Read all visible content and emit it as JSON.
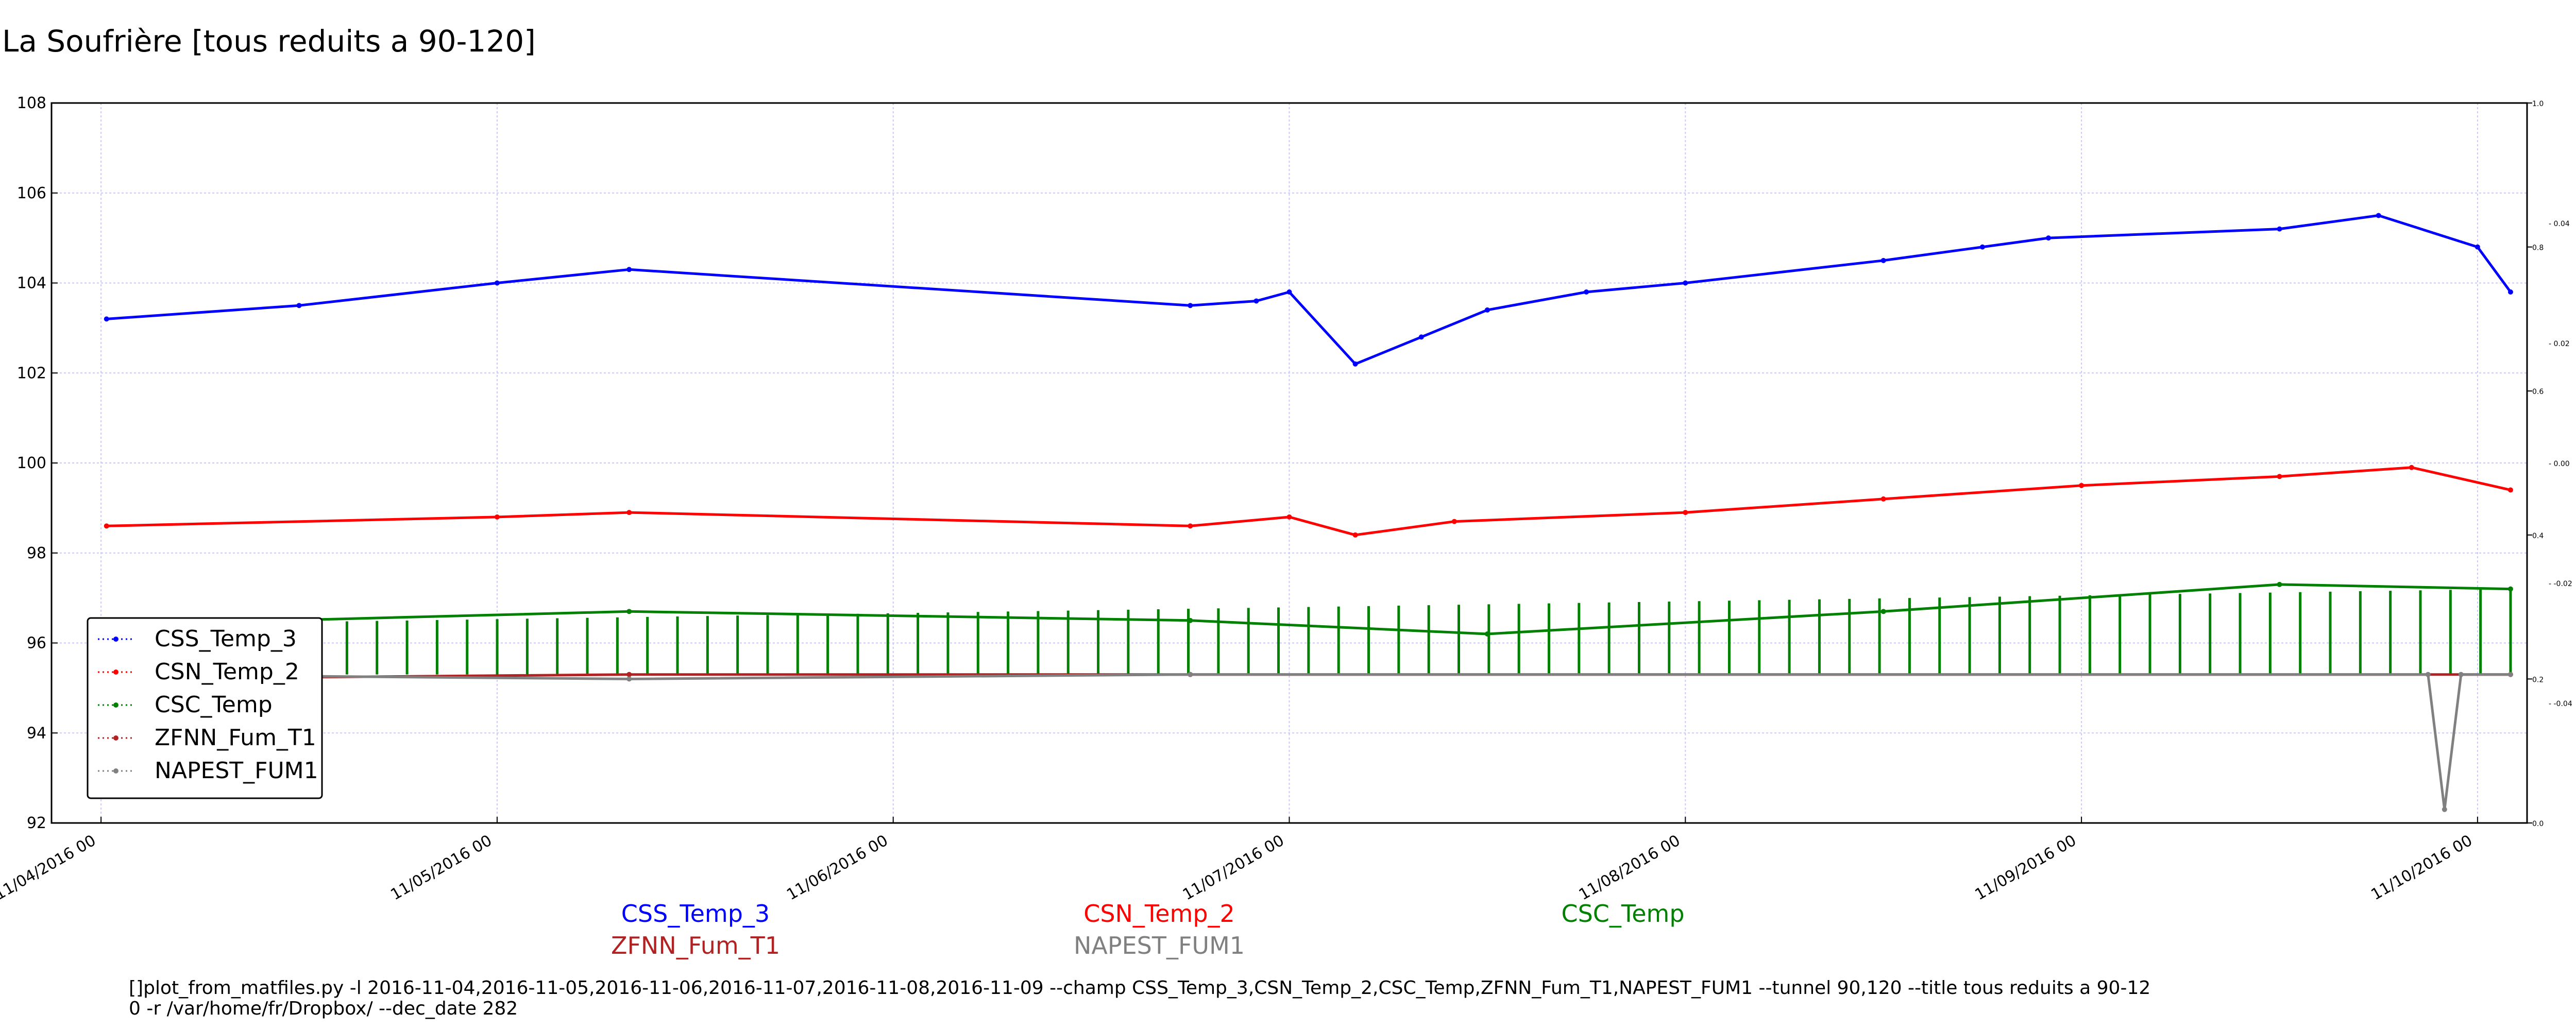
{
  "chart_data": {
    "type": "line",
    "title": "La Soufrière [tous reduits a 90-120]",
    "xlabel": "",
    "ylabel": "",
    "ylim": [
      92,
      108
    ],
    "y_ticks": [
      92,
      94,
      96,
      98,
      100,
      102,
      104,
      106,
      108
    ],
    "x_range": [
      "2016-11-03 21:00",
      "2016-11-10 03:00"
    ],
    "x_ticks": [
      {
        "date": "2016-11-04 00:00",
        "label": "11/04/2016 00"
      },
      {
        "date": "2016-11-05 00:00",
        "label": "11/05/2016 00"
      },
      {
        "date": "2016-11-06 00:00",
        "label": "11/06/2016 00"
      },
      {
        "date": "2016-11-07 00:00",
        "label": "11/07/2016 00"
      },
      {
        "date": "2016-11-08 00:00",
        "label": "11/08/2016 00"
      },
      {
        "date": "2016-11-09 00:00",
        "label": "11/09/2016 00"
      },
      {
        "date": "2016-11-10 00:00",
        "label": "11/10/2016 00"
      }
    ],
    "right_axis_outer": [
      "0.0",
      "0.2",
      "0.4",
      "0.6",
      "0.8",
      "1.0"
    ],
    "right_axis_inner": [
      "-0.04",
      "-0.02",
      "0.00",
      "0.02",
      "0.04"
    ],
    "grid": true,
    "legend_position": "lower-left",
    "series": [
      {
        "name": "CSS_Temp_3",
        "color": "#0000ff",
        "x": [
          "2016-11-04 00:20",
          "2016-11-04 12:00",
          "2016-11-05 00:00",
          "2016-11-05 08:00",
          "2016-11-06 18:00",
          "2016-11-06 22:00",
          "2016-11-07 00:00",
          "2016-11-07 04:00",
          "2016-11-07 08:00",
          "2016-11-07 12:00",
          "2016-11-07 18:00",
          "2016-11-08 00:00",
          "2016-11-08 12:00",
          "2016-11-08 18:00",
          "2016-11-08 22:00",
          "2016-11-09 12:00",
          "2016-11-09 18:00",
          "2016-11-10 00:00",
          "2016-11-10 02:00"
        ],
        "y": [
          103.2,
          103.5,
          104.0,
          104.3,
          103.5,
          103.6,
          103.8,
          102.2,
          102.8,
          103.4,
          103.8,
          104.0,
          104.5,
          104.8,
          105.0,
          105.2,
          105.5,
          104.8,
          103.8
        ]
      },
      {
        "name": "CSN_Temp_2",
        "color": "#ff0000",
        "x": [
          "2016-11-04 00:20",
          "2016-11-05 00:00",
          "2016-11-05 08:00",
          "2016-11-06 18:00",
          "2016-11-07 00:00",
          "2016-11-07 04:00",
          "2016-11-07 10:00",
          "2016-11-08 00:00",
          "2016-11-08 12:00",
          "2016-11-09 00:00",
          "2016-11-09 12:00",
          "2016-11-09 20:00",
          "2016-11-10 02:00"
        ],
        "y": [
          98.6,
          98.8,
          98.9,
          98.6,
          98.8,
          98.4,
          98.7,
          98.9,
          99.2,
          99.5,
          99.7,
          99.9,
          99.4
        ]
      },
      {
        "name": "CSC_Temp",
        "color": "#008000",
        "x": [
          "2016-11-04 00:20",
          "2016-11-05 08:00",
          "2016-11-06 18:00",
          "2016-11-07 12:00",
          "2016-11-08 12:00",
          "2016-11-09 12:00",
          "2016-11-10 02:00"
        ],
        "y": [
          96.4,
          96.7,
          96.5,
          96.2,
          96.7,
          97.3,
          97.2
        ],
        "dips_to": 95.3
      },
      {
        "name": "ZFNN_Fum_T1",
        "color": "#b22222",
        "x": [
          "2016-11-04 00:00",
          "2016-11-05 08:00",
          "2016-11-06 18:00",
          "2016-11-10 02:00"
        ],
        "y": [
          95.2,
          95.3,
          95.3,
          95.3
        ]
      },
      {
        "name": "NAPEST_FUM1",
        "color": "#808080",
        "x": [
          "2016-11-04 00:00",
          "2016-11-05 08:00",
          "2016-11-06 18:00",
          "2016-11-09 21:00",
          "2016-11-09 22:00",
          "2016-11-09 23:00",
          "2016-11-10 02:00"
        ],
        "y": [
          95.3,
          95.2,
          95.3,
          95.3,
          92.3,
          95.3,
          95.3
        ]
      }
    ]
  },
  "bottom_labels": [
    {
      "text": "CSS_Temp_3",
      "color": "#0000ff"
    },
    {
      "text": "CSN_Temp_2",
      "color": "#ff0000"
    },
    {
      "text": "CSC_Temp",
      "color": "#008000"
    },
    {
      "text": "ZFNN_Fum_T1",
      "color": "#b22222"
    },
    {
      "text": "NAPEST_FUM1",
      "color": "#808080"
    }
  ],
  "command": {
    "line1": "[]plot_from_matfiles.py -l 2016-11-04,2016-11-05,2016-11-06,2016-11-07,2016-11-08,2016-11-09 --champ CSS_Temp_3,CSN_Temp_2,CSC_Temp,ZFNN_Fum_T1,NAPEST_FUM1 --tunnel 90,120 --title tous reduits a 90-12",
    "line2": "0 -r /var/home/fr/Dropbox/ --dec_date 282"
  }
}
